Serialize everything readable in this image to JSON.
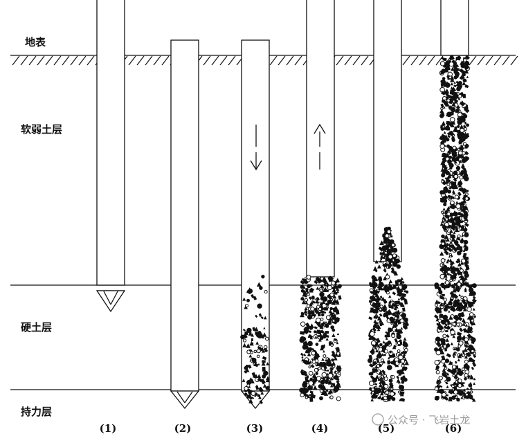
{
  "layers": {
    "ground_surface": "地表",
    "soft_soil": "软弱土层",
    "hard_soil": "硬土层",
    "bearing_layer": "持力层"
  },
  "steps": [
    "(1)",
    "(2)",
    "(3)",
    "(4)",
    "(5)",
    "(6)"
  ],
  "watermark": "公众号 · 飞岩土龙"
}
